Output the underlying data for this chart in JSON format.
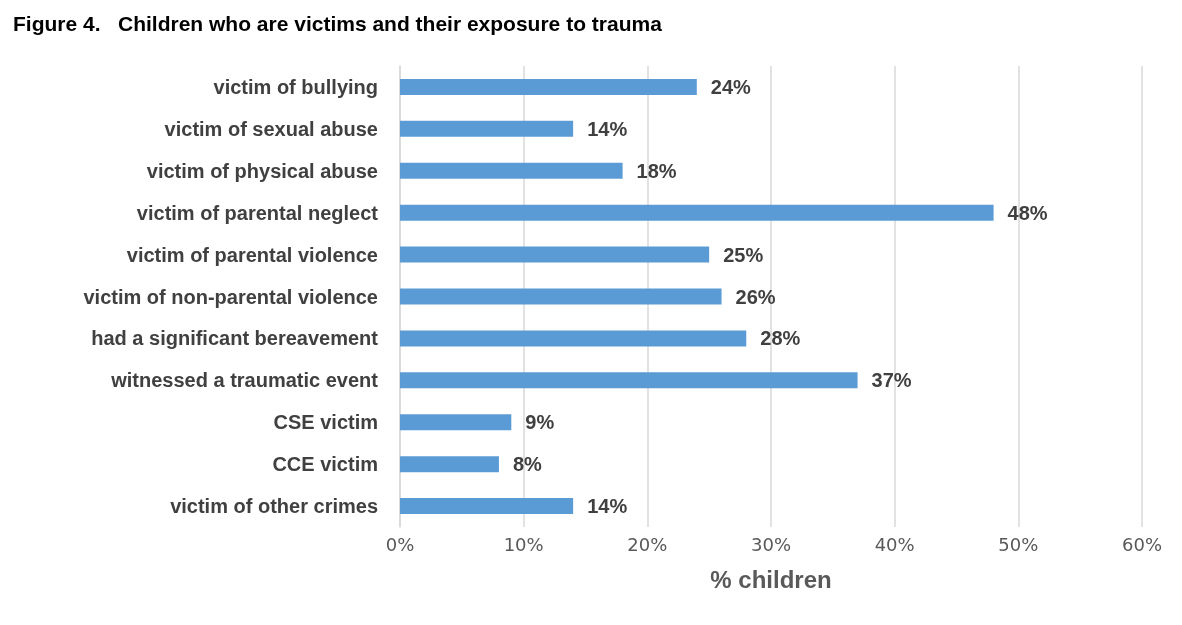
{
  "chart_data": {
    "type": "bar",
    "orientation": "horizontal",
    "title": "Figure 4.   Children who are victims and their exposure to trauma",
    "xlabel": "% children",
    "categories": [
      "victim of bullying",
      "victim of sexual abuse",
      "victim of physical abuse",
      "victim of parental neglect",
      "victim of parental violence",
      "victim of non-parental violence",
      "had a significant bereavement",
      "witnessed a traumatic event",
      "CSE victim",
      "CCE victim",
      "victim of other crimes"
    ],
    "values": [
      24,
      14,
      18,
      48,
      25,
      26,
      28,
      37,
      9,
      8,
      14
    ],
    "value_labels": [
      "24%",
      "14%",
      "18%",
      "48%",
      "25%",
      "26%",
      "28%",
      "37%",
      "9%",
      "8%",
      "14%"
    ],
    "color": "#5b9bd5",
    "xlim": [
      0,
      60
    ],
    "xticks": [
      {
        "value": 0,
        "label": "0%"
      },
      {
        "value": 10,
        "label": "10%"
      },
      {
        "value": 20,
        "label": "20%"
      },
      {
        "value": 30,
        "label": "30%"
      },
      {
        "value": 40,
        "label": "40%"
      },
      {
        "value": 50,
        "label": "50%"
      },
      {
        "value": 60,
        "label": "60%"
      }
    ],
    "grid": "x"
  }
}
